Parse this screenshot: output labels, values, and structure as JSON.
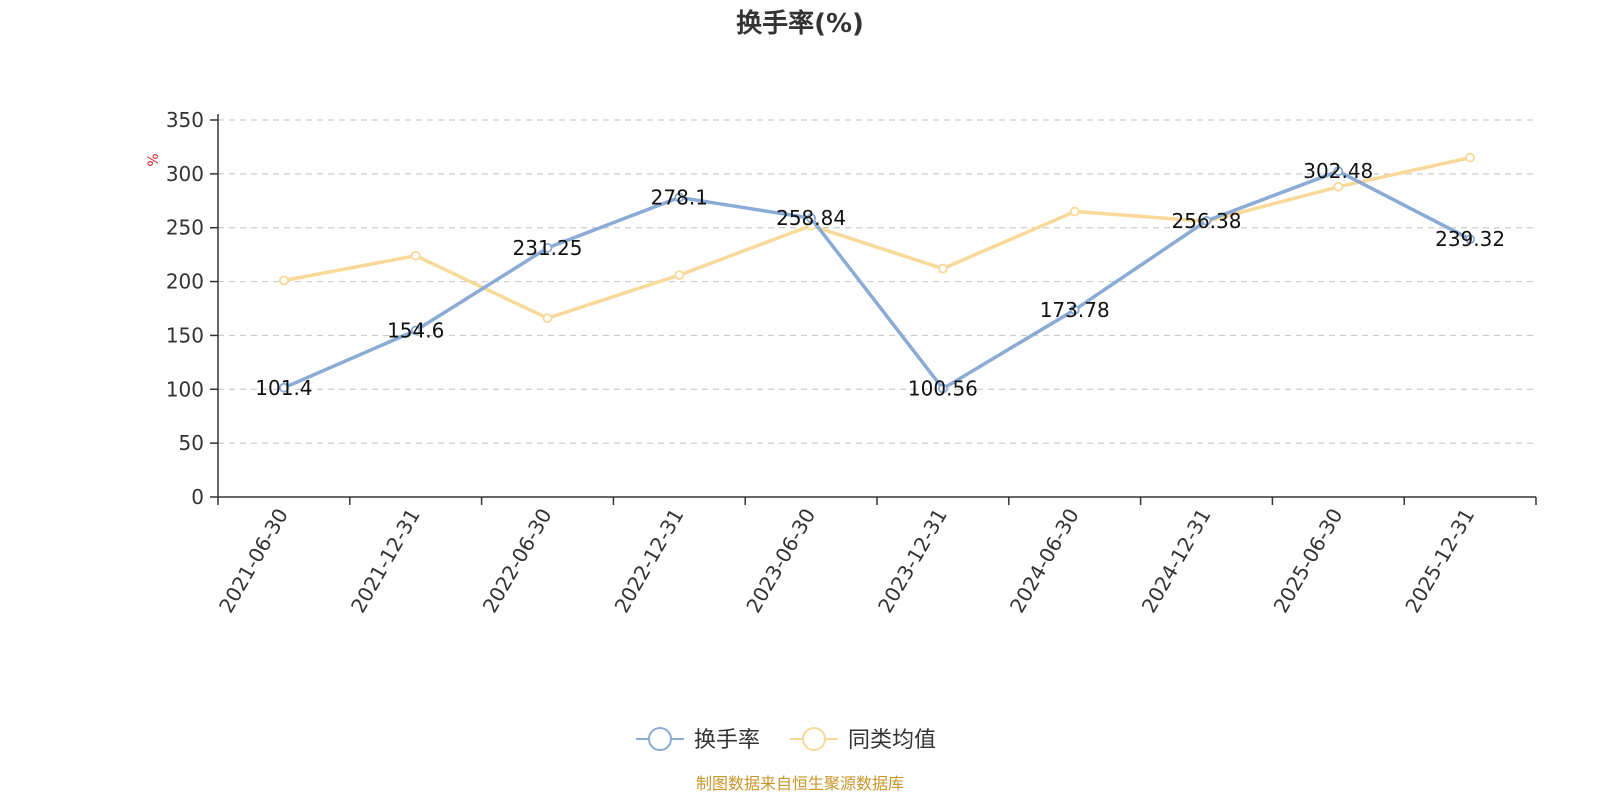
{
  "chart_data": {
    "type": "line",
    "title": "换手率(%)",
    "ylabel": "%",
    "xlabel": "",
    "categories": [
      "2021-06-30",
      "2021-12-31",
      "2022-06-30",
      "2022-12-31",
      "2023-06-30",
      "2023-12-31",
      "2024-06-30",
      "2024-12-31",
      "2025-06-30",
      "2025-12-31"
    ],
    "series": [
      {
        "name": "换手率",
        "color": "#8aabd6",
        "values": [
          101.4,
          154.6,
          231.25,
          278.1,
          258.84,
          100.56,
          173.78,
          256.38,
          302.48,
          239.32
        ],
        "labels": [
          "101.4",
          "154.6",
          "231.25",
          "278.1",
          "258.84",
          "100.56",
          "173.78",
          "256.38",
          "302.48",
          "239.32"
        ]
      },
      {
        "name": "同类均值",
        "color": "#f9d999",
        "values": [
          201,
          224,
          166,
          206,
          252,
          212,
          265,
          256,
          288,
          315
        ]
      }
    ],
    "ylim": [
      0,
      350
    ],
    "yticks": [
      0,
      50,
      100,
      150,
      200,
      250,
      300,
      350
    ],
    "grid": true,
    "legend_position": "bottom-center"
  },
  "footer": {
    "source": "制图数据来自恒生聚源数据库"
  }
}
